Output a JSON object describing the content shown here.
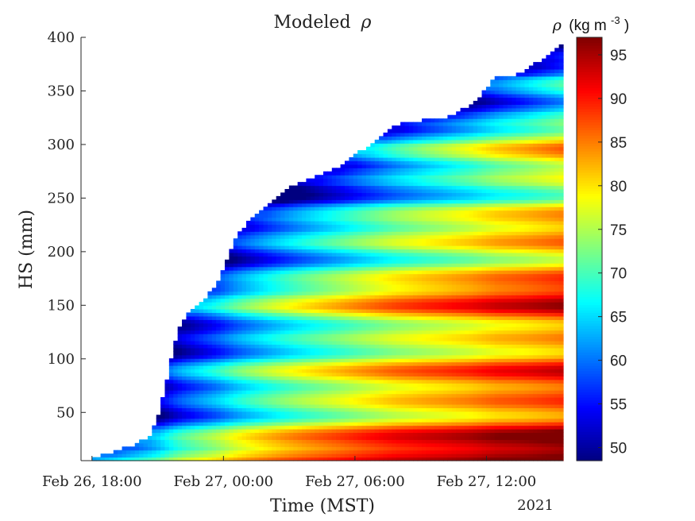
{
  "chart_data": {
    "type": "heatmap",
    "title_prefix": "Modeled",
    "title_symbol": "ρ",
    "xlabel": "Time (MST)",
    "ylabel": "HS (mm)",
    "x_tick_labels": [
      "Feb 26, 18:00",
      "Feb 27, 00:00",
      "Feb 27, 06:00",
      "Feb 27, 12:00"
    ],
    "x_ticks_hours": [
      18,
      24,
      30,
      36
    ],
    "x_year_label": "2021",
    "xlim_hours": [
      17.5,
      39.5
    ],
    "y_ticks": [
      50,
      100,
      150,
      200,
      250,
      300,
      350,
      400
    ],
    "ylim": [
      5,
      400
    ],
    "colorbar": {
      "label_symbol": "ρ",
      "label_unit": "(kg m",
      "label_exponent": "-3",
      "label_close": ")",
      "ticks": [
        50,
        55,
        60,
        65,
        70,
        75,
        80,
        85,
        90,
        95
      ],
      "range": [
        48.5,
        97
      ],
      "colormap": "jet"
    },
    "snow_height_profile": {
      "time_hours": [
        18.0,
        18.2,
        19.0,
        20.0,
        20.6,
        21.0,
        21.3,
        21.6,
        21.9,
        22.3,
        22.8,
        23.3,
        23.7,
        24.0,
        24.3,
        24.5,
        24.8,
        25.3,
        26.0,
        26.8,
        27.6,
        28.4,
        29.2,
        30.0,
        30.7,
        31.4,
        32.1,
        32.7,
        33.3,
        34.0,
        34.6,
        35.3,
        35.9,
        36.5,
        37.2,
        37.8,
        38.4,
        39.0,
        39.4
      ],
      "hs_mm": [
        8,
        8,
        14,
        20,
        28,
        45,
        70,
        100,
        125,
        140,
        150,
        160,
        170,
        185,
        200,
        210,
        220,
        232,
        245,
        258,
        266,
        272,
        278,
        290,
        300,
        312,
        320,
        320,
        324,
        324,
        330,
        336,
        350,
        365,
        365,
        370,
        378,
        388,
        395
      ]
    },
    "density_summary": {
      "min_approx": 49,
      "max_approx": 97,
      "trend": "density increases with time since deposition; highest (~95) near the surface-base layers late on Feb 27"
    }
  }
}
